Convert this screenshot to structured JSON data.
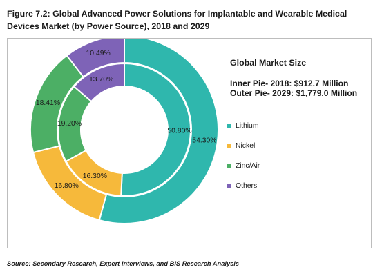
{
  "figure": {
    "title": "Figure 7.2: Global Advanced Power Solutions for Implantable and Wearable Medical Devices Market (by Power Source), 2018 and 2029",
    "source": "Source: Secondary Research, Expert Interviews, and BIS Research Analysis"
  },
  "info": {
    "heading": "Global Market Size",
    "inner_line": "Inner Pie- 2018: $912.7 Million",
    "outer_line": "Outer Pie- 2029: $1,779.0 Million"
  },
  "colors": {
    "Lithium": "#2fb7ad",
    "Nickel": "#f6b93b",
    "Zinc/Air": "#4caf65",
    "Others": "#7e63b7"
  },
  "chart_data": {
    "type": "pie",
    "style": "nested-donut",
    "categories": [
      "Lithium",
      "Nickel",
      "Zinc/Air",
      "Others"
    ],
    "series": [
      {
        "ring": "inner",
        "year": "2018",
        "values": [
          50.8,
          16.3,
          19.2,
          13.7
        ],
        "labels": [
          "50.80%",
          "16.30%",
          "19.20%",
          "13.70%"
        ]
      },
      {
        "ring": "outer",
        "year": "2029",
        "values": [
          54.3,
          16.8,
          18.41,
          10.49
        ],
        "labels": [
          "54.30%",
          "16.80%",
          "18.41%",
          "10.49%"
        ]
      }
    ],
    "legend": [
      "Lithium",
      "Nickel",
      "Zinc/Air",
      "Others"
    ],
    "legend_position": "right"
  }
}
